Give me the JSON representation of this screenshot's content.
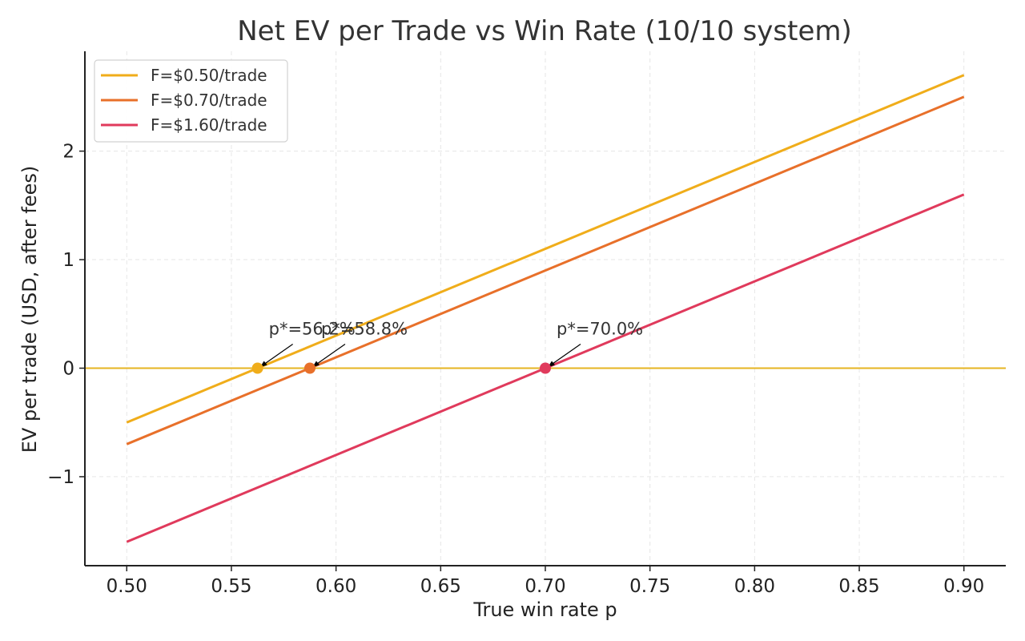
{
  "chart_data": {
    "type": "line",
    "title": "Net EV per Trade vs Win Rate (10/10 system)",
    "xlabel": "True win rate p",
    "ylabel": "EV per trade (USD, after fees)",
    "xlim": [
      0.48,
      0.92
    ],
    "ylim": [
      -1.82,
      2.92
    ],
    "x_ticks": [
      0.5,
      0.55,
      0.6,
      0.65,
      0.7,
      0.75,
      0.8,
      0.85,
      0.9
    ],
    "x_tick_labels": [
      "0.50",
      "0.55",
      "0.60",
      "0.65",
      "0.70",
      "0.75",
      "0.80",
      "0.85",
      "0.90"
    ],
    "y_ticks": [
      -1,
      0,
      1,
      2
    ],
    "y_tick_labels": [
      "−1",
      "0",
      "1",
      "2"
    ],
    "grid": true,
    "legend_position": "top-left",
    "reference_line": {
      "y": 0,
      "color": "#e6b422"
    },
    "series": [
      {
        "name": "F=$0.50/trade",
        "color": "#f0ad1a",
        "x": [
          0.5,
          0.9
        ],
        "y": [
          -0.5,
          2.7
        ],
        "breakeven": {
          "x": 0.5625,
          "y": 0,
          "label": "p*=56.2%"
        }
      },
      {
        "name": "F=$0.70/trade",
        "color": "#e8702a",
        "x": [
          0.5,
          0.9
        ],
        "y": [
          -0.7,
          2.5
        ],
        "breakeven": {
          "x": 0.5875,
          "y": 0,
          "label": "p*=58.8%"
        }
      },
      {
        "name": "F=$1.60/trade",
        "color": "#e03a5c",
        "x": [
          0.5,
          0.9
        ],
        "y": [
          -1.6,
          1.6
        ],
        "breakeven": {
          "x": 0.7,
          "y": 0,
          "label": "p*=70.0%"
        }
      }
    ]
  }
}
